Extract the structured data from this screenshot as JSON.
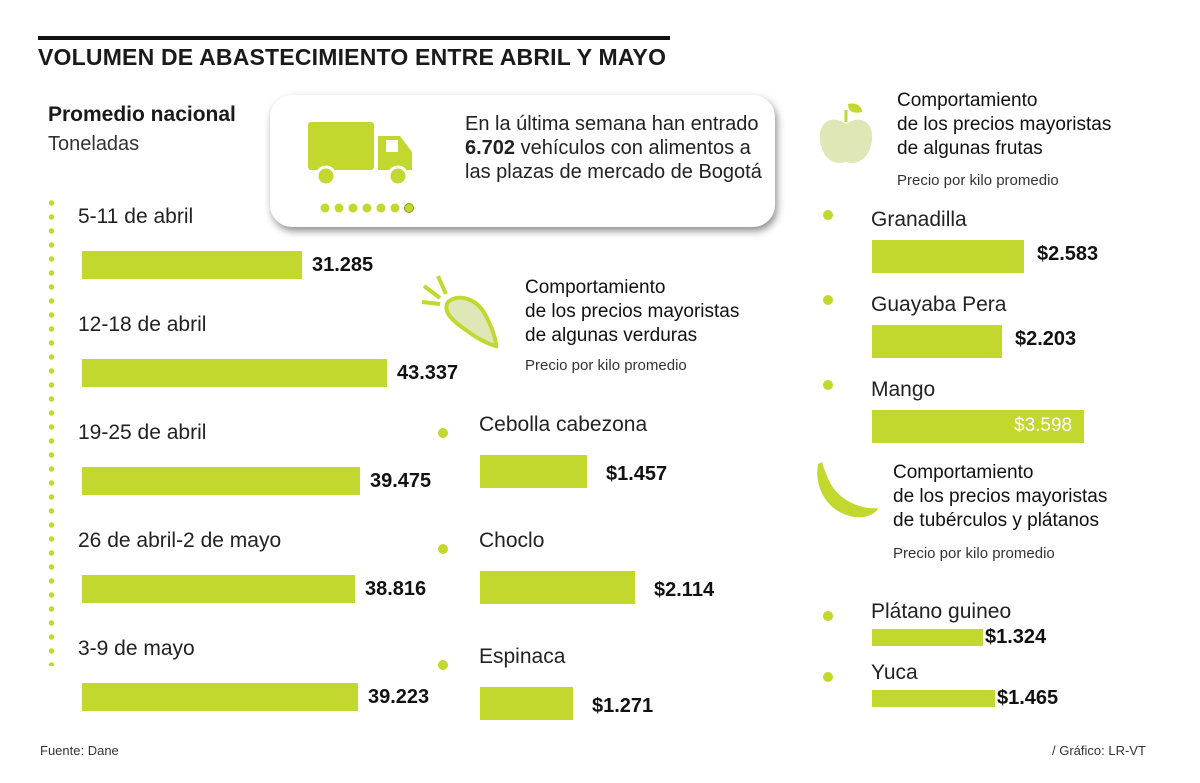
{
  "title": "VOLUMEN DE ABASTECIMIENTO ENTRE ABRIL Y MAYO",
  "colors": {
    "accent": "#c2d82e",
    "text": "#111111"
  },
  "volume": {
    "heading": "Promedio nacional",
    "unit": "Toneladas"
  },
  "info_box": {
    "text_before": "En la última semana han entrado ",
    "highlight": "6.702",
    "text_after": " vehículos con alimentos a las plazas de mercado de Bogotá",
    "icon": "truck-icon"
  },
  "verduras": {
    "heading_1": "Comportamiento",
    "heading_2": "de los precios mayoristas",
    "heading_3": "de algunas verduras",
    "sub": "Precio por kilo promedio",
    "icon": "vegetable-icon"
  },
  "frutas": {
    "heading_1": "Comportamiento",
    "heading_2": "de los precios mayoristas",
    "heading_3": "de algunas frutas",
    "sub": "Precio por kilo promedio",
    "icon": "apple-icon"
  },
  "tuberculos": {
    "heading_1": "Comportamiento",
    "heading_2": "de los precios mayoristas",
    "heading_3": "de tubérculos y plátanos",
    "sub": "Precio por kilo promedio",
    "icon": "banana-icon"
  },
  "footer": {
    "source": "Fuente: Dane",
    "credit": "/ Gráfico: LR-VT"
  },
  "chart_data": [
    {
      "type": "bar",
      "title": "Promedio nacional",
      "ylabel": "Toneladas",
      "categories": [
        "5-11 de abril",
        "12-18 de abril",
        "19-25 de abril",
        "26 de abril-2 de mayo",
        "3-9 de mayo"
      ],
      "values": [
        31285,
        43337,
        39475,
        38816,
        39223
      ],
      "value_labels": [
        "31.285",
        "43.337",
        "39.475",
        "38.816",
        "39.223"
      ],
      "orientation": "horizontal"
    },
    {
      "type": "bar",
      "title": "Comportamiento de los precios mayoristas de algunas verduras",
      "subtitle": "Precio por kilo promedio",
      "categories": [
        "Cebolla cabezona",
        "Choclo",
        "Espinaca"
      ],
      "values": [
        1457,
        2114,
        1271
      ],
      "value_labels": [
        "$1.457",
        "$2.114",
        "$1.271"
      ],
      "orientation": "horizontal"
    },
    {
      "type": "bar",
      "title": "Comportamiento de los precios mayoristas de algunas frutas",
      "subtitle": "Precio por kilo promedio",
      "categories": [
        "Granadilla",
        "Guayaba Pera",
        "Mango"
      ],
      "values": [
        2583,
        2203,
        3598
      ],
      "value_labels": [
        "$2.583",
        "$2.203",
        "$3.598"
      ],
      "orientation": "horizontal"
    },
    {
      "type": "bar",
      "title": "Comportamiento de los precios mayoristas de tubérculos y plátanos",
      "subtitle": "Precio por kilo promedio",
      "categories": [
        "Plátano guineo",
        "Yuca"
      ],
      "values": [
        1324,
        1465
      ],
      "value_labels": [
        "$1.324",
        "$1.465"
      ],
      "orientation": "horizontal"
    }
  ]
}
